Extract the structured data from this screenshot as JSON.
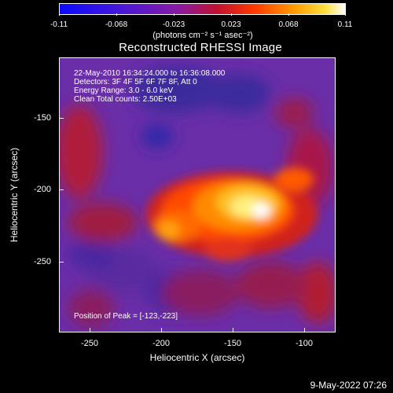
{
  "colorbar": {
    "ticks": [
      "-0.11",
      "-0.068",
      "-0.023",
      "0.023",
      "0.068",
      "0.11"
    ],
    "units": "(photons cm⁻² s⁻¹ asec⁻²)"
  },
  "title": "Reconstructed RHESSI Image",
  "info": {
    "line1": "22-May-2010 16:34:24.000 to 16:36:08.000",
    "line2": "Detectors: 3F 4F 5F 6F 7F 8F, Att 0",
    "line3": "Energy Range: 3.0 - 6.0 keV",
    "line4": "Clean     Total counts: 2.50E+03"
  },
  "peak": "Position of Peak = [-123,-223]",
  "axes": {
    "xlabel": "Heliocentric X (arcsec)",
    "ylabel": "Heliocentric Y (arcsec)",
    "xticks": [
      "-250",
      "-200",
      "-150",
      "-100"
    ],
    "yticks": [
      "-150",
      "-200",
      "-250"
    ]
  },
  "footer": "9-May-2022 07:26"
}
